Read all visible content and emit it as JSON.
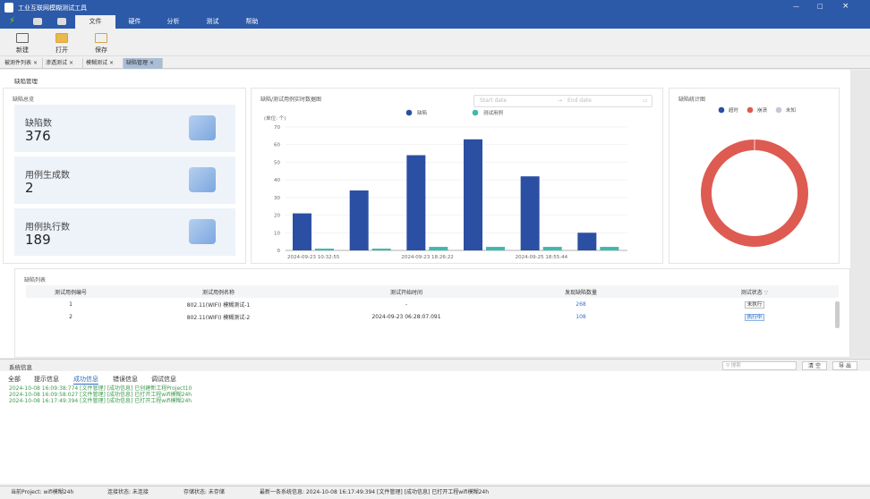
{
  "app": {
    "title": "工业互联网模糊测试工具"
  },
  "menu": {
    "tabs": [
      "文件",
      "硬件",
      "分析",
      "测试",
      "帮助"
    ],
    "active": "文件"
  },
  "toolbar": {
    "new": "新建",
    "open": "打开",
    "save": "保存"
  },
  "doc_tabs": [
    {
      "label": "被测件列表"
    },
    {
      "label": "渗透测试"
    },
    {
      "label": "模糊测试"
    },
    {
      "label": "缺陷管理",
      "active": true
    }
  ],
  "page": {
    "title": "缺陷管理"
  },
  "overview": {
    "title": "缺陷总览",
    "stats": [
      {
        "label": "缺陷数",
        "value": "376"
      },
      {
        "label": "用例生成数",
        "value": "2"
      },
      {
        "label": "用例执行数",
        "value": "189"
      }
    ]
  },
  "date_range": {
    "start_placeholder": "Start date",
    "end_placeholder": "End date",
    "separator": "→"
  },
  "chart_data": [
    {
      "type": "bar",
      "title": "缺陷/测试用例实时数据图",
      "ylabel": "(单位: 个)",
      "ylim": [
        0,
        70
      ],
      "yticks": [
        0,
        10,
        20,
        30,
        40,
        50,
        60,
        70
      ],
      "grid": true,
      "legend": "top",
      "categories": [
        "2024-09-23 10:32:55",
        "",
        "2024-09-23 18:26:22",
        "",
        "2024-09-25 18:55:44",
        ""
      ],
      "series": [
        {
          "name": "缺陷",
          "color": "#2b4fa3",
          "values": [
            21,
            34,
            54,
            63,
            42,
            10
          ]
        },
        {
          "name": "测试用例",
          "color": "#3fb8ad",
          "values": [
            1,
            1,
            2,
            2,
            2,
            2
          ]
        }
      ]
    },
    {
      "type": "pie",
      "title": "缺陷统计图",
      "donut": true,
      "legend": "top",
      "series": [
        {
          "name": "超时",
          "color": "#2b4fa3",
          "value": 0
        },
        {
          "name": "崩溃",
          "color": "#de5b52",
          "value": 376
        },
        {
          "name": "未知",
          "color": "#c7c7da",
          "value": 0
        }
      ]
    }
  ],
  "defect_list": {
    "title": "缺陷列表",
    "columns": [
      "测试用例编号",
      "测试用例名称",
      "测试开始时间",
      "发现缺陷数量",
      "测试状态"
    ],
    "rows": [
      {
        "id": "1",
        "name": "802.11(WIFI) 模糊测试-1",
        "start": "-",
        "count": "268",
        "status": "未执行"
      },
      {
        "id": "2",
        "name": "802.11(WIFI) 模糊测试-2",
        "start": "2024-09-23 06:28:07.091",
        "count": "108",
        "status": "执行中"
      }
    ]
  },
  "sysinfo": {
    "title": "系统信息",
    "search_placeholder": "搜索",
    "clear": "清 空",
    "export": "导 出",
    "tabs": [
      "全部",
      "提示信息",
      "成功信息",
      "错误信息",
      "调试信息"
    ],
    "active_tab": "成功信息",
    "logs": [
      "2024-10-08 16:09:38:774 [文件管理] [成功信息] 已创建新工程Project10",
      "2024-10-08 16:09:58:027 [文件管理] [成功信息] 已打开工程wifi模糊24h",
      "2024-10-08 16:17:49:394 [文件管理] [成功信息] 已打开工程wifi模糊24h"
    ]
  },
  "status": {
    "project": "当前Project: wifi模糊24h",
    "connection": "连接状态: 未连接",
    "storage": "存储状态: 未存储",
    "latest": "最新一条系统信息: 2024-10-08 16:17:49:394 [文件管理] [成功信息] 已打开工程wifi模糊24h"
  }
}
